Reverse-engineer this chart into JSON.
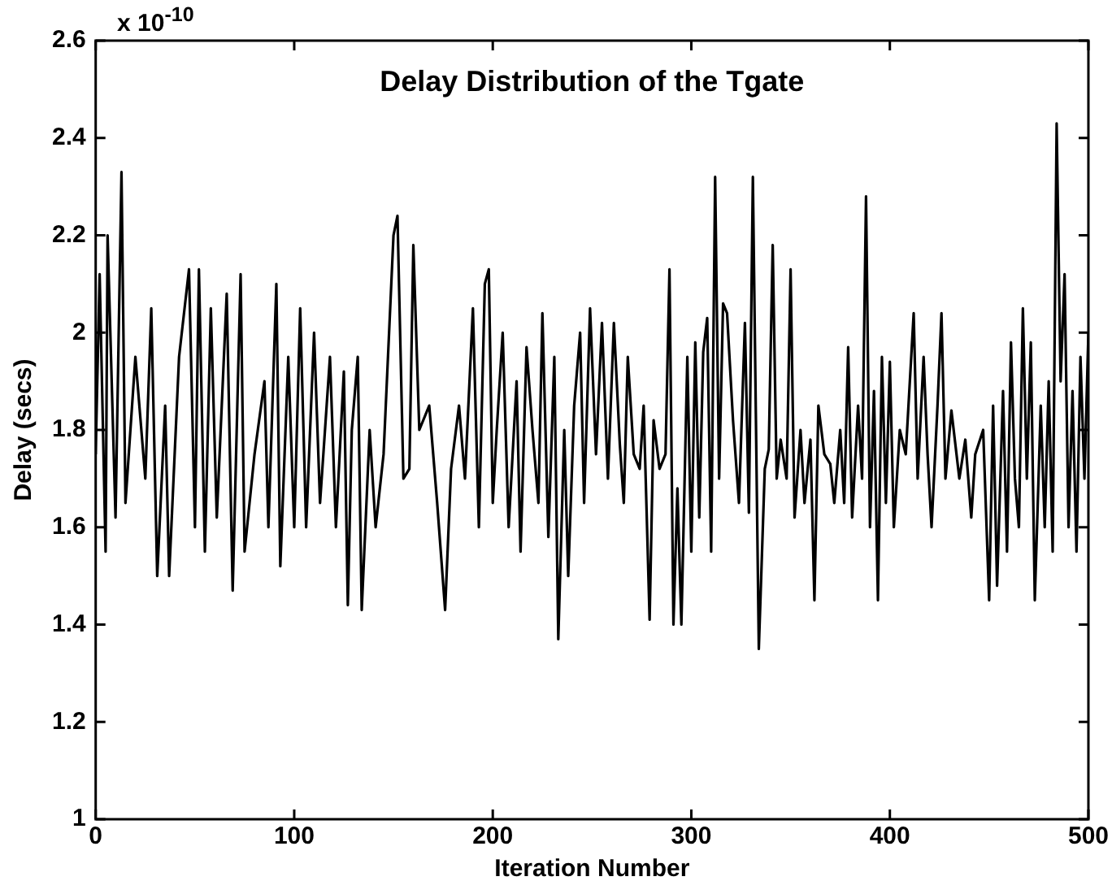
{
  "chart_data": {
    "type": "line",
    "title": "Delay Distribution of the Tgate",
    "xlabel": "Iteration Number",
    "ylabel": "Delay (secs)",
    "annotations": [
      "x 10$^{-10}$"
    ],
    "x": [
      0,
      2,
      5,
      6,
      10,
      13,
      15,
      20,
      25,
      28,
      31,
      35,
      37,
      42,
      47,
      50,
      52,
      55,
      58,
      61,
      66,
      69,
      73,
      75,
      80,
      85,
      87,
      91,
      93,
      97,
      100,
      103,
      106,
      110,
      113,
      118,
      121,
      125,
      127,
      129,
      132,
      134,
      138,
      141,
      145,
      150,
      152,
      155,
      158,
      160,
      163,
      168,
      172,
      176,
      179,
      183,
      186,
      190,
      193,
      196,
      198,
      200,
      202,
      205,
      208,
      212,
      214,
      217,
      220,
      223,
      225,
      228,
      231,
      233,
      236,
      238,
      241,
      244,
      246,
      249,
      252,
      255,
      258,
      261,
      264,
      266,
      268,
      271,
      274,
      276,
      279,
      281,
      284,
      287,
      289,
      291,
      293,
      295,
      298,
      300,
      302,
      304,
      306,
      308,
      310,
      312,
      314,
      316,
      318,
      321,
      324,
      327,
      329,
      331,
      334,
      337,
      339,
      341,
      343,
      345,
      348,
      350,
      352,
      355,
      357,
      360,
      362,
      364,
      367,
      370,
      372,
      375,
      377,
      379,
      381,
      384,
      386,
      388,
      390,
      392,
      394,
      396,
      398,
      400,
      402,
      405,
      408,
      412,
      414,
      417,
      419,
      421,
      424,
      426,
      428,
      431,
      435,
      438,
      441,
      443,
      447,
      450,
      452,
      454,
      457,
      459,
      461,
      463,
      465,
      467,
      469,
      471,
      473,
      476,
      478,
      480,
      482,
      484,
      486,
      488,
      490,
      492,
      494,
      496,
      498,
      500
    ],
    "series": [
      {
        "color": "#000000",
        "values": [
          1.75,
          2.12,
          1.55,
          2.2,
          1.62,
          2.33,
          1.65,
          1.95,
          1.7,
          2.05,
          1.5,
          1.85,
          1.5,
          1.95,
          2.13,
          1.6,
          2.13,
          1.55,
          2.05,
          1.62,
          2.08,
          1.47,
          2.12,
          1.55,
          1.75,
          1.9,
          1.6,
          2.1,
          1.52,
          1.95,
          1.6,
          2.05,
          1.6,
          2.0,
          1.65,
          1.95,
          1.6,
          1.92,
          1.44,
          1.8,
          1.95,
          1.43,
          1.8,
          1.6,
          1.75,
          2.2,
          2.24,
          1.7,
          1.72,
          2.18,
          1.8,
          1.85,
          1.65,
          1.43,
          1.72,
          1.85,
          1.7,
          2.05,
          1.6,
          2.1,
          2.13,
          1.65,
          1.8,
          2.0,
          1.6,
          1.9,
          1.55,
          1.97,
          1.8,
          1.65,
          2.04,
          1.58,
          1.95,
          1.37,
          1.8,
          1.5,
          1.85,
          2.0,
          1.65,
          2.05,
          1.75,
          2.02,
          1.7,
          2.02,
          1.77,
          1.65,
          1.95,
          1.75,
          1.72,
          1.85,
          1.41,
          1.82,
          1.72,
          1.75,
          2.13,
          1.4,
          1.68,
          1.4,
          1.95,
          1.55,
          1.98,
          1.62,
          1.96,
          2.03,
          1.55,
          2.32,
          1.7,
          2.06,
          2.04,
          1.82,
          1.65,
          2.02,
          1.63,
          2.32,
          1.35,
          1.72,
          1.76,
          2.18,
          1.7,
          1.78,
          1.7,
          2.13,
          1.62,
          1.8,
          1.65,
          1.78,
          1.45,
          1.85,
          1.75,
          1.73,
          1.65,
          1.8,
          1.65,
          1.97,
          1.62,
          1.85,
          1.7,
          2.28,
          1.6,
          1.88,
          1.45,
          1.95,
          1.65,
          1.94,
          1.6,
          1.8,
          1.75,
          2.04,
          1.7,
          1.95,
          1.75,
          1.6,
          1.85,
          2.04,
          1.7,
          1.84,
          1.7,
          1.78,
          1.62,
          1.75,
          1.8,
          1.45,
          1.85,
          1.48,
          1.88,
          1.55,
          1.98,
          1.7,
          1.6,
          2.05,
          1.7,
          1.98,
          1.45,
          1.85,
          1.6,
          1.9,
          1.55,
          2.43,
          1.9,
          2.12,
          1.6,
          1.88,
          1.55,
          1.95,
          1.7,
          2.0
        ]
      }
    ],
    "xlim": [
      0,
      500
    ],
    "xticks": [
      0,
      100,
      200,
      300,
      400,
      500
    ],
    "ylim": [
      1,
      2.6
    ],
    "yticks": [
      1,
      1.2,
      1.4,
      1.6,
      1.8,
      2,
      2.2,
      2.4,
      2.6
    ]
  }
}
